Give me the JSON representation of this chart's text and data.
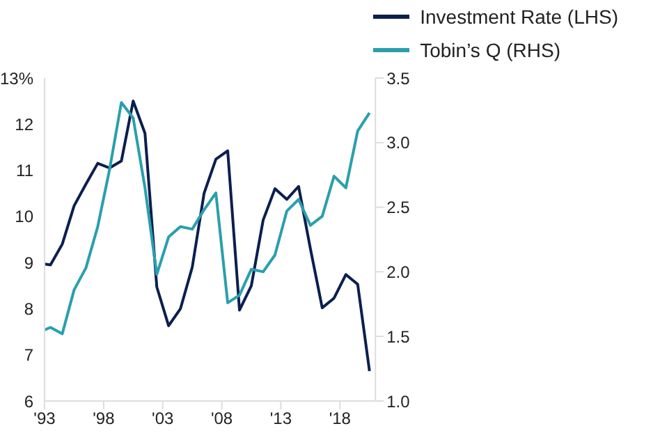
{
  "chart_data": {
    "type": "line",
    "x": [
      1993,
      1993.5,
      1994.5,
      1995.5,
      1996.5,
      1997.5,
      1998.5,
      1999.5,
      2000.5,
      2001.5,
      2002.5,
      2003.5,
      2004.5,
      2005.5,
      2006.5,
      2007.5,
      2008.5,
      2009.5,
      2010.5,
      2011.5,
      2012.5,
      2013.5,
      2014.5,
      2015.5,
      2016.5,
      2017.5,
      2018.5,
      2019.5,
      2020.5
    ],
    "series": [
      {
        "name": "Investment Rate (LHS)",
        "color": "#0b1f4f",
        "values": [
          8.97,
          8.95,
          9.4,
          10.23,
          10.7,
          11.15,
          11.05,
          11.2,
          12.5,
          11.8,
          8.47,
          7.63,
          8.0,
          8.9,
          10.5,
          11.24,
          11.42,
          7.97,
          8.5,
          9.92,
          10.6,
          10.37,
          10.65,
          9.3,
          8.02,
          8.23,
          8.74,
          8.53,
          6.65
        ]
      },
      {
        "name": "Tobin’s Q (RHS)",
        "color": "#2a9fad",
        "axis": "y2",
        "values": [
          1.55,
          1.57,
          1.52,
          1.86,
          2.03,
          2.35,
          2.79,
          3.31,
          3.19,
          2.65,
          1.98,
          2.27,
          2.35,
          2.33,
          2.48,
          2.61,
          1.76,
          1.82,
          2.02,
          2.0,
          2.13,
          2.47,
          2.56,
          2.36,
          2.43,
          2.74,
          2.65,
          3.09,
          3.23
        ]
      }
    ],
    "xlim": [
      1993,
      2021
    ],
    "xticks": [
      {
        "value": 1993,
        "label": "'93"
      },
      {
        "value": 1998,
        "label": "'98"
      },
      {
        "value": 2003,
        "label": "'03"
      },
      {
        "value": 2008,
        "label": "'08"
      },
      {
        "value": 2013,
        "label": "'13"
      },
      {
        "value": 2018,
        "label": "'18"
      }
    ],
    "ylim": [
      6,
      13
    ],
    "yticks": [
      6,
      7,
      8,
      9,
      10,
      11,
      12,
      {
        "value": 13,
        "label": "13%"
      }
    ],
    "y2lim": [
      1.0,
      3.5
    ],
    "y2ticks": [
      {
        "value": 1.0,
        "label": "1.0"
      },
      1.5,
      {
        "value": 2.0,
        "label": "2.0"
      },
      2.5,
      {
        "value": 3.0,
        "label": "3.0"
      },
      3.5
    ],
    "grid": false,
    "legend": "top right",
    "marker": "none",
    "line_style": "solid"
  }
}
